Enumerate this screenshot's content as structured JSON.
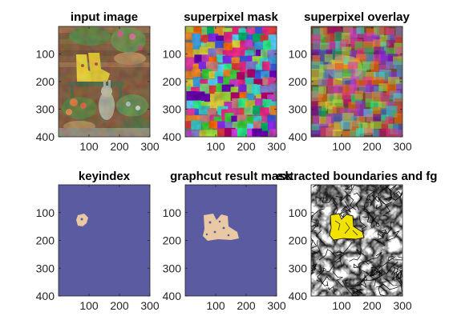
{
  "chart_data": [
    {
      "type": "image",
      "title": "input image",
      "xticks": [
        100,
        200,
        300
      ],
      "yticks": [
        100,
        200,
        300,
        400
      ],
      "xlim": [
        0,
        300
      ],
      "ylim": [
        0,
        400
      ],
      "content": "photo of a garden scene with yellow boots, flower pots and a rabbit statue"
    },
    {
      "type": "image",
      "title": "superpixel mask",
      "xticks": [
        100,
        200,
        300
      ],
      "yticks": [
        100,
        200,
        300,
        400
      ],
      "xlim": [
        0,
        300
      ],
      "ylim": [
        0,
        400
      ],
      "content": "random-colour superpixel label map"
    },
    {
      "type": "image",
      "title": "superpixel overlay",
      "xticks": [
        100,
        200,
        300
      ],
      "yticks": [
        100,
        200,
        300,
        400
      ],
      "xlim": [
        0,
        300
      ],
      "ylim": [
        0,
        400
      ],
      "content": "superpixel colours blended with the input photo"
    },
    {
      "type": "image",
      "title": "keyindex",
      "xticks": [
        100,
        200,
        300
      ],
      "yticks": [
        100,
        200,
        300,
        400
      ],
      "xlim": [
        0,
        300
      ],
      "ylim": [
        0,
        400
      ],
      "colors": {
        "background": "#5a5ba0",
        "foreground": "#e8c9a3"
      },
      "content": "small seed region near x 70-100, y 190-230"
    },
    {
      "type": "image",
      "title": "graphcut result mask",
      "xticks": [
        100,
        200,
        300
      ],
      "yticks": [
        100,
        200,
        300,
        400
      ],
      "xlim": [
        0,
        300
      ],
      "ylim": [
        0,
        400
      ],
      "colors": {
        "background": "#5a5ba0",
        "foreground": "#e8c9a3"
      },
      "content": "boot-shaped foreground region near x 60-175, y 180-310"
    },
    {
      "type": "image",
      "title": "extracted boundaries and fg",
      "xticks": [
        100,
        200,
        300
      ],
      "yticks": [
        100,
        200,
        300,
        400
      ],
      "xlim": [
        0,
        300
      ],
      "ylim": [
        0,
        400
      ],
      "colors": {
        "background": "#ffffff",
        "boundaries": "#000000",
        "foreground": "#f2e200"
      },
      "content": "superpixel boundary lines with yellow foreground"
    }
  ]
}
